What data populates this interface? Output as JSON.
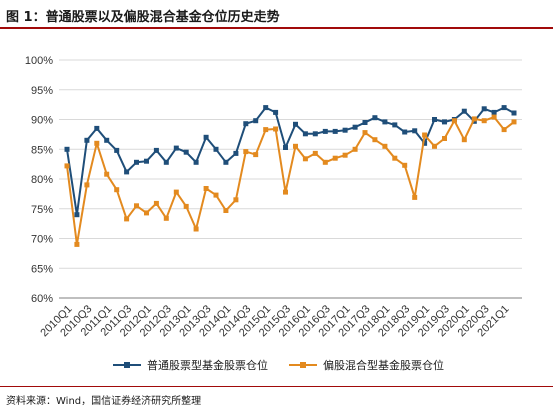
{
  "figure": {
    "title": "图 1：普通股票以及偏股混合基金仓位历史走势",
    "source": "资料来源：Wind，国信证券经济研究所整理"
  },
  "colors": {
    "series_1": "#1f4e79",
    "series_2": "#e38a1f",
    "title_rule": "#a10a0a"
  },
  "chart_data": {
    "type": "line",
    "title": "",
    "xlabel": "",
    "ylabel": "",
    "ylim": [
      60,
      100
    ],
    "yticks": [
      "60%",
      "65%",
      "70%",
      "75%",
      "80%",
      "85%",
      "90%",
      "95%",
      "100%"
    ],
    "grid": "horizontal",
    "legend_position": "bottom",
    "x": [
      "2010Q1",
      "2010Q2",
      "2010Q3",
      "2010Q4",
      "2011Q1",
      "2011Q2",
      "2011Q3",
      "2011Q4",
      "2012Q1",
      "2012Q2",
      "2012Q3",
      "2012Q4",
      "2013Q1",
      "2013Q2",
      "2013Q3",
      "2013Q4",
      "2014Q1",
      "2014Q2",
      "2014Q3",
      "2014Q4",
      "2015Q1",
      "2015Q2",
      "2015Q3",
      "2015Q4",
      "2016Q1",
      "2016Q2",
      "2016Q3",
      "2016Q4",
      "2017Q1",
      "2017Q2",
      "2017Q3",
      "2017Q4",
      "2018Q1",
      "2018Q2",
      "2018Q3",
      "2018Q4",
      "2019Q1",
      "2019Q2",
      "2019Q3",
      "2019Q4",
      "2020Q1",
      "2020Q2",
      "2020Q3",
      "2020Q4",
      "2021Q1",
      "2021Q2"
    ],
    "x_tick_labels": [
      "2010Q1",
      "2010Q3",
      "2011Q1",
      "2011Q3",
      "2012Q1",
      "2012Q3",
      "2013Q1",
      "2013Q3",
      "2014Q1",
      "2014Q3",
      "2015Q1",
      "2015Q3",
      "2016Q1",
      "2016Q3",
      "2017Q1",
      "2017Q3",
      "2018Q1",
      "2018Q3",
      "2019Q1",
      "2019Q3",
      "2020Q1",
      "2020Q3",
      "2021Q1"
    ],
    "series": [
      {
        "name": "普通股票型基金股票仓位",
        "values": [
          85.0,
          74.0,
          86.5,
          88.5,
          86.5,
          84.8,
          81.2,
          82.8,
          83.0,
          84.8,
          82.8,
          85.2,
          84.5,
          82.8,
          87.0,
          85.0,
          82.8,
          84.3,
          89.3,
          89.8,
          92.0,
          91.2,
          85.3,
          89.2,
          87.6,
          87.6,
          88.0,
          88.0,
          88.2,
          88.7,
          89.5,
          90.3,
          89.6,
          89.1,
          87.9,
          88.1,
          86.0,
          90.0,
          89.6,
          90.0,
          91.4,
          89.7,
          91.8,
          91.2,
          92.0,
          91.1
        ]
      },
      {
        "name": "偏股混合型基金股票仓位",
        "values": [
          82.2,
          69.0,
          79.0,
          86.0,
          80.8,
          78.2,
          73.3,
          75.5,
          74.3,
          75.9,
          73.4,
          77.8,
          75.4,
          71.6,
          78.4,
          77.3,
          74.7,
          76.5,
          84.6,
          84.1,
          88.3,
          88.4,
          77.8,
          85.5,
          83.4,
          84.3,
          82.8,
          83.5,
          84.0,
          85.0,
          87.8,
          86.6,
          85.5,
          83.5,
          82.3,
          76.9,
          87.4,
          85.5,
          86.8,
          89.8,
          86.6,
          90.1,
          89.8,
          90.4,
          88.3,
          89.6
        ]
      }
    ]
  }
}
